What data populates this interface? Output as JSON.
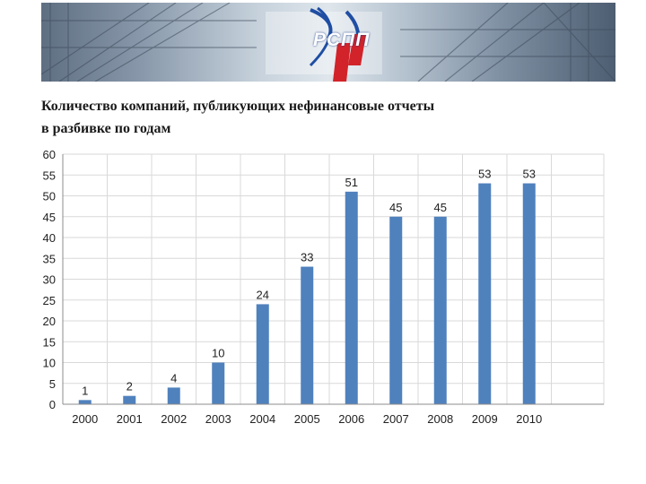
{
  "banner": {
    "logo_text": "РСПП",
    "colors": {
      "logo_red": "#d2232a",
      "logo_blue": "#1f4ea3"
    }
  },
  "title": {
    "line1": "Количество компаний, публикующих нефинансовые отчеты",
    "line2": "в разбивке по годам"
  },
  "chart_data": {
    "type": "bar",
    "title": "Количество компаний, публикующих нефинансовые отчеты в разбивке по годам",
    "categories": [
      "2000",
      "2001",
      "2002",
      "2003",
      "2004",
      "2005",
      "2006",
      "2007",
      "2008",
      "2009",
      "2010"
    ],
    "values": [
      1,
      2,
      4,
      10,
      24,
      33,
      51,
      45,
      45,
      53,
      53
    ],
    "data_labels": [
      "1",
      "2",
      "4",
      "10",
      "24",
      "33",
      "51",
      "45",
      "45",
      "53",
      "53"
    ],
    "yticks": [
      "0",
      "5",
      "10",
      "15",
      "20",
      "25",
      "30",
      "35",
      "40",
      "45",
      "50",
      "55",
      "60"
    ],
    "ylim": [
      0,
      60
    ],
    "xlabel": "",
    "ylabel": "",
    "grid": true,
    "legend": "none",
    "bar_color": "#4f81bd",
    "grid_color": "#d9d9d9"
  }
}
